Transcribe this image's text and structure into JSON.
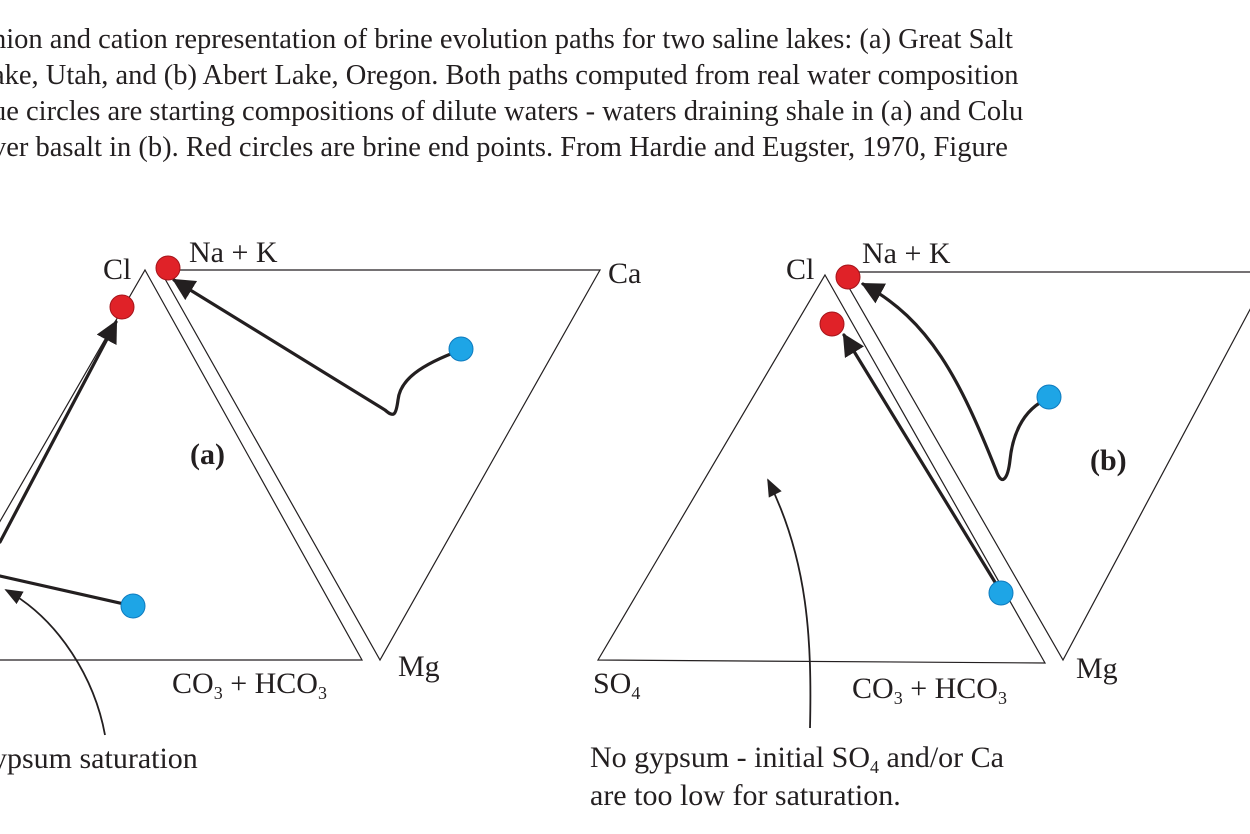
{
  "caption": {
    "lines": [
      "nion and cation representation of brine evolution paths for two saline lakes: (a) Great Salt",
      "ake, Utah,  and (b) Abert Lake, Oregon. Both paths computed from real water composition",
      "ue circles are starting compositions of dilute waters - waters draining shale in (a) and Colu",
      "ver basalt in (b). Red circles are brine end points. From Hardie and Eugster, 1970, Figure"
    ]
  },
  "diagram_a": {
    "panel_label": "(a)",
    "anion_apex_label": "Cl",
    "cation_apex_top_label": "Na + K",
    "cation_apex_right_label": "Ca",
    "anion_base_label_main": "CO",
    "anion_base_label_sub1": "3",
    "anion_base_label_mid": " + HCO",
    "anion_base_label_sub2": "3",
    "cation_base_label": "Mg",
    "annotation": "ypsum saturation"
  },
  "diagram_b": {
    "panel_label": "(b)",
    "anion_apex_label": "Cl",
    "cation_apex_top_label": "Na + K",
    "anion_left_label_main": "SO",
    "anion_left_label_sub": "4",
    "anion_base_label_main": "CO",
    "anion_base_label_sub1": "3",
    "anion_base_label_mid": " + HCO",
    "anion_base_label_sub2": "3",
    "cation_base_label": "Mg",
    "annotation_line1_a": "No gypsum - initial SO",
    "annotation_line1_sub": "4",
    "annotation_line1_b": " and/or Ca",
    "annotation_line2": "are too low for saturation."
  },
  "colors": {
    "start_point": "#1ea5e6",
    "end_point": "#e02228",
    "line": "#231f20"
  }
}
